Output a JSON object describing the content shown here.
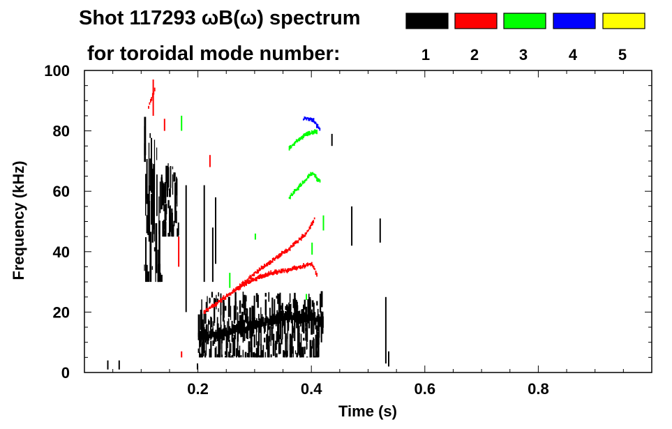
{
  "chart_data": {
    "type": "heatmap",
    "title": "Shot 117293 ωB(ω) spectrum",
    "subtitle": "for toroidal mode number:",
    "xlabel": "Time (s)",
    "ylabel": "Frequency (kHz)",
    "xlim": [
      0.0,
      1.0
    ],
    "ylim": [
      0,
      100
    ],
    "x_ticks": [
      {
        "value": 0.2,
        "label": "0.2"
      },
      {
        "value": 0.4,
        "label": "0.4"
      },
      {
        "value": 0.6,
        "label": "0.6"
      },
      {
        "value": 0.8,
        "label": "0.8"
      }
    ],
    "y_ticks": [
      {
        "value": 0,
        "label": "0"
      },
      {
        "value": 20,
        "label": "20"
      },
      {
        "value": 40,
        "label": "40"
      },
      {
        "value": 60,
        "label": "60"
      },
      {
        "value": 80,
        "label": "80"
      },
      {
        "value": 100,
        "label": "100"
      }
    ],
    "legend": [
      {
        "mode": "1",
        "color": "#000000"
      },
      {
        "mode": "2",
        "color": "#ff0000"
      },
      {
        "mode": "3",
        "color": "#00ff00"
      },
      {
        "mode": "4",
        "color": "#0000ff"
      },
      {
        "mode": "5",
        "color": "#ffff00"
      }
    ],
    "series": [
      {
        "name": "n=1",
        "color": "#000000",
        "regions": [
          {
            "t": [
              0.105,
              0.135
            ],
            "f": [
              30,
              85
            ]
          },
          {
            "t": [
              0.135,
              0.165
            ],
            "f": [
              45,
              70
            ]
          },
          {
            "t": [
              0.2,
              0.42
            ],
            "f": [
              5,
              27
            ]
          }
        ],
        "traces": [
          {
            "t": [
              0.2,
              0.25,
              0.3,
              0.35,
              0.4,
              0.42
            ],
            "f": [
              12,
              13,
              16,
              18,
              18,
              17
            ]
          }
        ],
        "streaks": [
          {
            "t": 0.04,
            "f": [
              1,
              4
            ]
          },
          {
            "t": 0.06,
            "f": [
              1,
              4
            ]
          },
          {
            "t": 0.178,
            "f": [
              20,
              62
            ]
          },
          {
            "t": 0.198,
            "f": [
              1,
              3
            ]
          },
          {
            "t": 0.21,
            "f": [
              30,
              62
            ]
          },
          {
            "t": 0.225,
            "f": [
              30,
              48
            ]
          },
          {
            "t": 0.23,
            "f": [
              36,
              58
            ]
          },
          {
            "t": 0.435,
            "f": [
              75,
              79
            ]
          },
          {
            "t": 0.47,
            "f": [
              42,
              55
            ]
          },
          {
            "t": 0.52,
            "f": [
              43,
              51
            ]
          },
          {
            "t": 0.53,
            "f": [
              3,
              25
            ]
          },
          {
            "t": 0.535,
            "f": [
              2,
              7
            ]
          }
        ]
      },
      {
        "name": "n=2",
        "color": "#ff0000",
        "traces": [
          {
            "t": [
              0.21,
              0.24,
              0.27,
              0.3,
              0.33,
              0.36,
              0.39,
              0.405
            ],
            "f": [
              20,
              24,
              28,
              33,
              37,
              41,
              46,
              51
            ]
          },
          {
            "t": [
              0.27,
              0.3,
              0.33,
              0.36,
              0.38,
              0.4,
              0.41
            ],
            "f": [
              28,
              31,
              33,
              34,
              35,
              36,
              32
            ]
          },
          {
            "t": [
              0.112,
              0.118,
              0.124
            ],
            "f": [
              88,
              91,
              94
            ]
          }
        ],
        "streaks": [
          {
            "t": 0.12,
            "f": [
              85,
              97
            ]
          },
          {
            "t": 0.14,
            "f": [
              80,
              84
            ]
          },
          {
            "t": 0.165,
            "f": [
              35,
              45
            ]
          },
          {
            "t": 0.17,
            "f": [
              5,
              7
            ]
          },
          {
            "t": 0.22,
            "f": [
              68,
              72
            ]
          }
        ]
      },
      {
        "name": "n=3",
        "color": "#00ff00",
        "traces": [
          {
            "t": [
              0.36,
              0.38,
              0.4,
              0.415
            ],
            "f": [
              58,
              62,
              66,
              63
            ]
          },
          {
            "t": [
              0.36,
              0.375,
              0.39,
              0.41
            ],
            "f": [
              74,
              77,
              79,
              80
            ]
          }
        ],
        "streaks": [
          {
            "t": 0.17,
            "f": [
              80,
              85
            ]
          },
          {
            "t": 0.255,
            "f": [
              28,
              33
            ]
          },
          {
            "t": 0.3,
            "f": [
              44,
              46
            ]
          },
          {
            "t": 0.4,
            "f": [
              39,
              43
            ]
          },
          {
            "t": 0.39,
            "f": [
              24,
              26
            ]
          },
          {
            "t": 0.42,
            "f": [
              47,
              52
            ]
          }
        ]
      },
      {
        "name": "n=4",
        "color": "#0000ff",
        "traces": [
          {
            "t": [
              0.385,
              0.395,
              0.405,
              0.415
            ],
            "f": [
              84,
              84,
              83,
              80
            ]
          }
        ],
        "streaks": []
      },
      {
        "name": "n=5",
        "color": "#ffff00",
        "traces": [],
        "streaks": []
      }
    ]
  }
}
